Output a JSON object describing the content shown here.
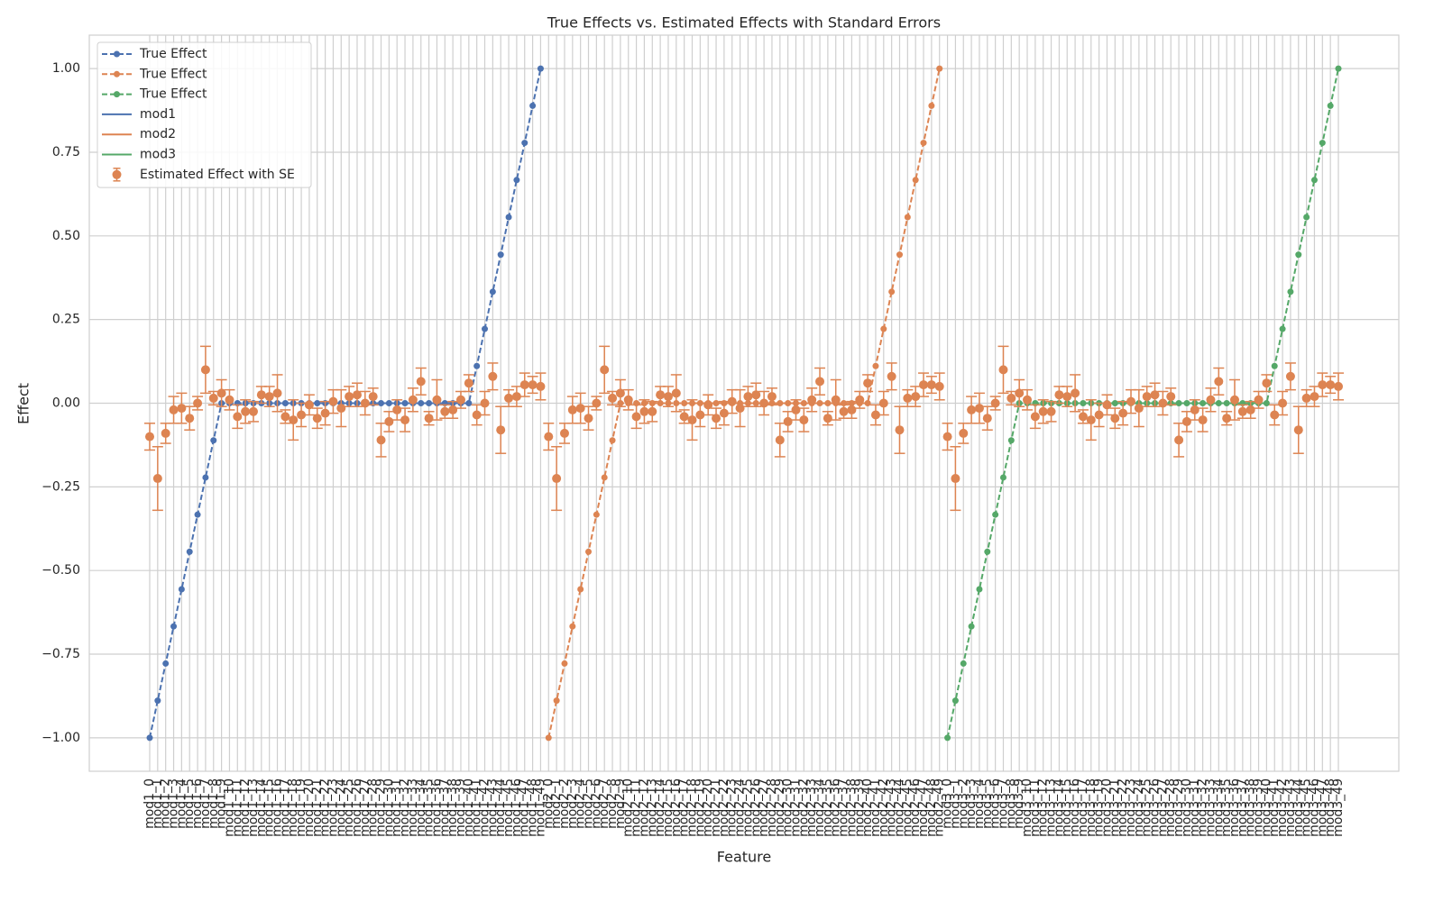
{
  "chart_data": {
    "type": "errorbar",
    "title": "True Effects vs. Estimated Effects with Standard Errors",
    "xlabel": "Feature",
    "ylabel": "Effect",
    "categories": [
      "mod1_0",
      "mod1_1",
      "mod1_2",
      "mod1_3",
      "mod1_4",
      "mod1_5",
      "mod1_6",
      "mod1_7",
      "mod1_8",
      "mod1_9",
      "mod1_10",
      "mod1_11",
      "mod1_12",
      "mod1_13",
      "mod1_14",
      "mod1_15",
      "mod1_16",
      "mod1_17",
      "mod1_18",
      "mod1_19",
      "mod1_20",
      "mod1_21",
      "mod1_22",
      "mod1_23",
      "mod1_24",
      "mod1_25",
      "mod1_26",
      "mod1_27",
      "mod1_28",
      "mod1_29",
      "mod1_30",
      "mod1_31",
      "mod1_32",
      "mod1_33",
      "mod1_34",
      "mod1_35",
      "mod1_36",
      "mod1_37",
      "mod1_38",
      "mod1_39",
      "mod1_40",
      "mod1_41",
      "mod1_42",
      "mod1_43",
      "mod1_44",
      "mod1_45",
      "mod1_46",
      "mod1_47",
      "mod1_48",
      "mod1_49",
      "mod2_0",
      "mod2_1",
      "mod2_2",
      "mod2_3",
      "mod2_4",
      "mod2_5",
      "mod2_6",
      "mod2_7",
      "mod2_8",
      "mod2_9",
      "mod2_10",
      "mod2_11",
      "mod2_12",
      "mod2_13",
      "mod2_14",
      "mod2_15",
      "mod2_16",
      "mod2_17",
      "mod2_18",
      "mod2_19",
      "mod2_20",
      "mod2_21",
      "mod2_22",
      "mod2_23",
      "mod2_24",
      "mod2_25",
      "mod2_26",
      "mod2_27",
      "mod2_28",
      "mod2_29",
      "mod2_30",
      "mod2_31",
      "mod2_32",
      "mod2_33",
      "mod2_34",
      "mod2_35",
      "mod2_36",
      "mod2_37",
      "mod2_38",
      "mod2_39",
      "mod2_40",
      "mod2_41",
      "mod2_42",
      "mod2_43",
      "mod2_44",
      "mod2_45",
      "mod2_46",
      "mod2_47",
      "mod2_48",
      "mod2_49",
      "mod3_0",
      "mod3_1",
      "mod3_2",
      "mod3_3",
      "mod3_4",
      "mod3_5",
      "mod3_6",
      "mod3_7",
      "mod3_8",
      "mod3_9",
      "mod3_10",
      "mod3_11",
      "mod3_12",
      "mod3_13",
      "mod3_14",
      "mod3_15",
      "mod3_16",
      "mod3_17",
      "mod3_18",
      "mod3_19",
      "mod3_20",
      "mod3_21",
      "mod3_22",
      "mod3_23",
      "mod3_24",
      "mod3_25",
      "mod3_26",
      "mod3_27",
      "mod3_28",
      "mod3_29",
      "mod3_30",
      "mod3_31",
      "mod3_32",
      "mod3_33",
      "mod3_34",
      "mod3_35",
      "mod3_36",
      "mod3_37",
      "mod3_38",
      "mod3_39",
      "mod3_40",
      "mod3_41",
      "mod3_42",
      "mod3_43",
      "mod3_44",
      "mod3_45",
      "mod3_46",
      "mod3_47",
      "mod3_48",
      "mod3_49"
    ],
    "series": [
      {
        "name": "True Effect",
        "color": "#4c72b0",
        "style": "dashed",
        "values": [
          -1,
          -0.889,
          -0.778,
          -0.667,
          -0.556,
          -0.444,
          -0.333,
          -0.222,
          -0.111,
          0,
          0,
          0,
          0,
          0,
          0,
          0,
          0,
          0,
          0,
          0,
          0,
          0,
          0,
          0,
          0,
          0,
          0,
          0,
          0,
          0,
          0,
          0,
          0,
          0,
          0,
          0,
          0,
          0,
          0,
          0,
          0,
          0.111,
          0.222,
          0.333,
          0.444,
          0.556,
          0.667,
          0.778,
          0.889,
          1,
          null,
          null,
          null,
          null,
          null,
          null,
          null,
          null,
          null,
          null,
          null,
          null,
          null,
          null,
          null,
          null,
          null,
          null,
          null,
          null,
          null,
          null,
          null,
          null,
          null,
          null,
          null,
          null,
          null,
          null,
          null,
          null,
          null,
          null,
          null,
          null,
          null,
          null,
          null,
          null,
          null,
          null,
          null,
          null,
          null,
          null,
          null,
          null,
          null,
          null,
          null,
          null,
          null,
          null,
          null,
          null,
          null,
          null,
          null,
          null,
          null,
          null,
          null,
          null,
          null,
          null,
          null,
          null,
          null,
          null,
          null,
          null,
          null,
          null,
          null,
          null,
          null,
          null,
          null,
          null,
          null,
          null,
          null,
          null,
          null,
          null,
          null,
          null,
          null,
          null,
          null,
          null,
          null,
          null,
          null,
          null,
          null,
          null,
          null,
          null
        ]
      },
      {
        "name": "True Effect",
        "color": "#dd8452",
        "style": "dashed",
        "values": [
          null,
          null,
          null,
          null,
          null,
          null,
          null,
          null,
          null,
          null,
          null,
          null,
          null,
          null,
          null,
          null,
          null,
          null,
          null,
          null,
          null,
          null,
          null,
          null,
          null,
          null,
          null,
          null,
          null,
          null,
          null,
          null,
          null,
          null,
          null,
          null,
          null,
          null,
          null,
          null,
          null,
          null,
          null,
          null,
          null,
          null,
          null,
          null,
          null,
          null,
          -1,
          -0.889,
          -0.778,
          -0.667,
          -0.556,
          -0.444,
          -0.333,
          -0.222,
          -0.111,
          0,
          0,
          0,
          0,
          0,
          0,
          0,
          0,
          0,
          0,
          0,
          0,
          0,
          0,
          0,
          0,
          0,
          0,
          0,
          0,
          0,
          0,
          0,
          0,
          0,
          0,
          0,
          0,
          0,
          0,
          0,
          0,
          0.111,
          0.222,
          0.333,
          0.444,
          0.556,
          0.667,
          0.778,
          0.889,
          1,
          null,
          null,
          null,
          null,
          null,
          null,
          null,
          null,
          null,
          null,
          null,
          null,
          null,
          null,
          null,
          null,
          null,
          null,
          null,
          null,
          null,
          null,
          null,
          null,
          null,
          null,
          null,
          null,
          null,
          null,
          null,
          null,
          null,
          null,
          null,
          null,
          null,
          null,
          null,
          null,
          null,
          null,
          null,
          null,
          null,
          null,
          null,
          null,
          null,
          null
        ]
      },
      {
        "name": "True Effect",
        "color": "#55a868",
        "style": "dashed",
        "values": [
          null,
          null,
          null,
          null,
          null,
          null,
          null,
          null,
          null,
          null,
          null,
          null,
          null,
          null,
          null,
          null,
          null,
          null,
          null,
          null,
          null,
          null,
          null,
          null,
          null,
          null,
          null,
          null,
          null,
          null,
          null,
          null,
          null,
          null,
          null,
          null,
          null,
          null,
          null,
          null,
          null,
          null,
          null,
          null,
          null,
          null,
          null,
          null,
          null,
          null,
          null,
          null,
          null,
          null,
          null,
          null,
          null,
          null,
          null,
          null,
          null,
          null,
          null,
          null,
          null,
          null,
          null,
          null,
          null,
          null,
          null,
          null,
          null,
          null,
          null,
          null,
          null,
          null,
          null,
          null,
          null,
          null,
          null,
          null,
          null,
          null,
          null,
          null,
          null,
          null,
          null,
          null,
          null,
          null,
          null,
          null,
          null,
          null,
          null,
          null,
          -1,
          -0.889,
          -0.778,
          -0.667,
          -0.556,
          -0.444,
          -0.333,
          -0.222,
          -0.111,
          0,
          0,
          0,
          0,
          0,
          0,
          0,
          0,
          0,
          0,
          0,
          0,
          0,
          0,
          0,
          0,
          0,
          0,
          0,
          0,
          0,
          0,
          0,
          0,
          0,
          0,
          0,
          0,
          0,
          0,
          0,
          0,
          0.111,
          0.222,
          0.333,
          0.444,
          0.556,
          0.667,
          0.778,
          0.889,
          1
        ]
      },
      {
        "name": "Estimated Effect with SE",
        "color": "#dd8452",
        "style": "errorbar",
        "values": [
          -0.1,
          -0.225,
          -0.09,
          -0.02,
          -0.015,
          -0.045,
          0,
          0.1,
          0.015,
          0.03,
          0.01,
          -0.04,
          -0.025,
          -0.025,
          0.025,
          0.02,
          0.03,
          -0.04,
          -0.05,
          -0.035,
          -0.005,
          -0.045,
          -0.03,
          0.005,
          -0.015,
          0.02,
          0.025,
          0,
          0.02,
          -0.11,
          -0.055,
          -0.02,
          -0.05,
          0.01,
          0.065,
          -0.045,
          0.01,
          -0.025,
          -0.02,
          0.01,
          0.06,
          -0.035,
          0,
          0.08,
          -0.08,
          0.015,
          0.02,
          0.055,
          0.055,
          0.05,
          -0.1,
          -0.225,
          -0.09,
          -0.02,
          -0.015,
          -0.045,
          0,
          0.1,
          0.015,
          0.03,
          0.01,
          -0.04,
          -0.025,
          -0.025,
          0.025,
          0.02,
          0.03,
          -0.04,
          -0.05,
          -0.035,
          -0.005,
          -0.045,
          -0.03,
          0.005,
          -0.015,
          0.02,
          0.025,
          0,
          0.02,
          -0.11,
          -0.055,
          -0.02,
          -0.05,
          0.01,
          0.065,
          -0.045,
          0.01,
          -0.025,
          -0.02,
          0.01,
          0.06,
          -0.035,
          0,
          0.08,
          -0.08,
          0.015,
          0.02,
          0.055,
          0.055,
          0.05,
          -0.1,
          -0.225,
          -0.09,
          -0.02,
          -0.015,
          -0.045,
          0,
          0.1,
          0.015,
          0.03,
          0.01,
          -0.04,
          -0.025,
          -0.025,
          0.025,
          0.02,
          0.03,
          -0.04,
          -0.05,
          -0.035,
          -0.005,
          -0.045,
          -0.03,
          0.005,
          -0.015,
          0.02,
          0.025,
          0,
          0.02,
          -0.11,
          -0.055,
          -0.02,
          -0.05,
          0.01,
          0.065,
          -0.045,
          0.01,
          -0.025,
          -0.02,
          0.01,
          0.06,
          -0.035,
          0,
          0.08,
          -0.08,
          0.015,
          0.02,
          0.055,
          0.055,
          0.05
        ],
        "errors": [
          0.04,
          0.095,
          0.03,
          0.04,
          0.045,
          0.035,
          0.02,
          0.07,
          0.02,
          0.04,
          0.03,
          0.035,
          0.035,
          0.03,
          0.025,
          0.03,
          0.055,
          0.02,
          0.06,
          0.035,
          0.03,
          0.03,
          0.035,
          0.035,
          0.055,
          0.03,
          0.035,
          0.035,
          0.025,
          0.05,
          0.03,
          0.03,
          0.035,
          0.035,
          0.04,
          0.02,
          0.06,
          0.02,
          0.025,
          0.025,
          0.025,
          0.03,
          0.035,
          0.04,
          0.07,
          0.025,
          0.03,
          0.035,
          0.025,
          0.04,
          0.04,
          0.095,
          0.03,
          0.04,
          0.045,
          0.035,
          0.02,
          0.07,
          0.02,
          0.04,
          0.03,
          0.035,
          0.035,
          0.03,
          0.025,
          0.03,
          0.055,
          0.02,
          0.06,
          0.035,
          0.03,
          0.03,
          0.035,
          0.035,
          0.055,
          0.03,
          0.035,
          0.035,
          0.025,
          0.05,
          0.03,
          0.03,
          0.035,
          0.035,
          0.04,
          0.02,
          0.06,
          0.02,
          0.025,
          0.025,
          0.025,
          0.03,
          0.035,
          0.04,
          0.07,
          0.025,
          0.03,
          0.035,
          0.025,
          0.04,
          0.04,
          0.095,
          0.03,
          0.04,
          0.045,
          0.035,
          0.02,
          0.07,
          0.02,
          0.04,
          0.03,
          0.035,
          0.035,
          0.03,
          0.025,
          0.03,
          0.055,
          0.02,
          0.06,
          0.035,
          0.03,
          0.03,
          0.035,
          0.035,
          0.055,
          0.03,
          0.035,
          0.035,
          0.025,
          0.05,
          0.03,
          0.03,
          0.035,
          0.035,
          0.04,
          0.02,
          0.06,
          0.02,
          0.025,
          0.025,
          0.025,
          0.03,
          0.035,
          0.04,
          0.07,
          0.025,
          0.03,
          0.035,
          0.025,
          0.04
        ]
      }
    ],
    "legend_lines": [
      {
        "name": "mod1",
        "color": "#4c72b0"
      },
      {
        "name": "mod2",
        "color": "#dd8452"
      },
      {
        "name": "mod3",
        "color": "#55a868"
      }
    ],
    "legend": "upper left",
    "grid": true,
    "ylim": [
      -1.1,
      1.1
    ],
    "yticks": [
      {
        "value": -1,
        "label": "−1.00"
      },
      {
        "value": -0.75,
        "label": "−0.75"
      },
      {
        "value": -0.5,
        "label": "−0.50"
      },
      {
        "value": -0.25,
        "label": "−0.25"
      },
      {
        "value": 0,
        "label": "0.00"
      },
      {
        "value": 0.25,
        "label": "0.25"
      },
      {
        "value": 0.5,
        "label": "0.50"
      },
      {
        "value": 0.75,
        "label": "0.75"
      },
      {
        "value": 1,
        "label": "1.00"
      }
    ]
  }
}
